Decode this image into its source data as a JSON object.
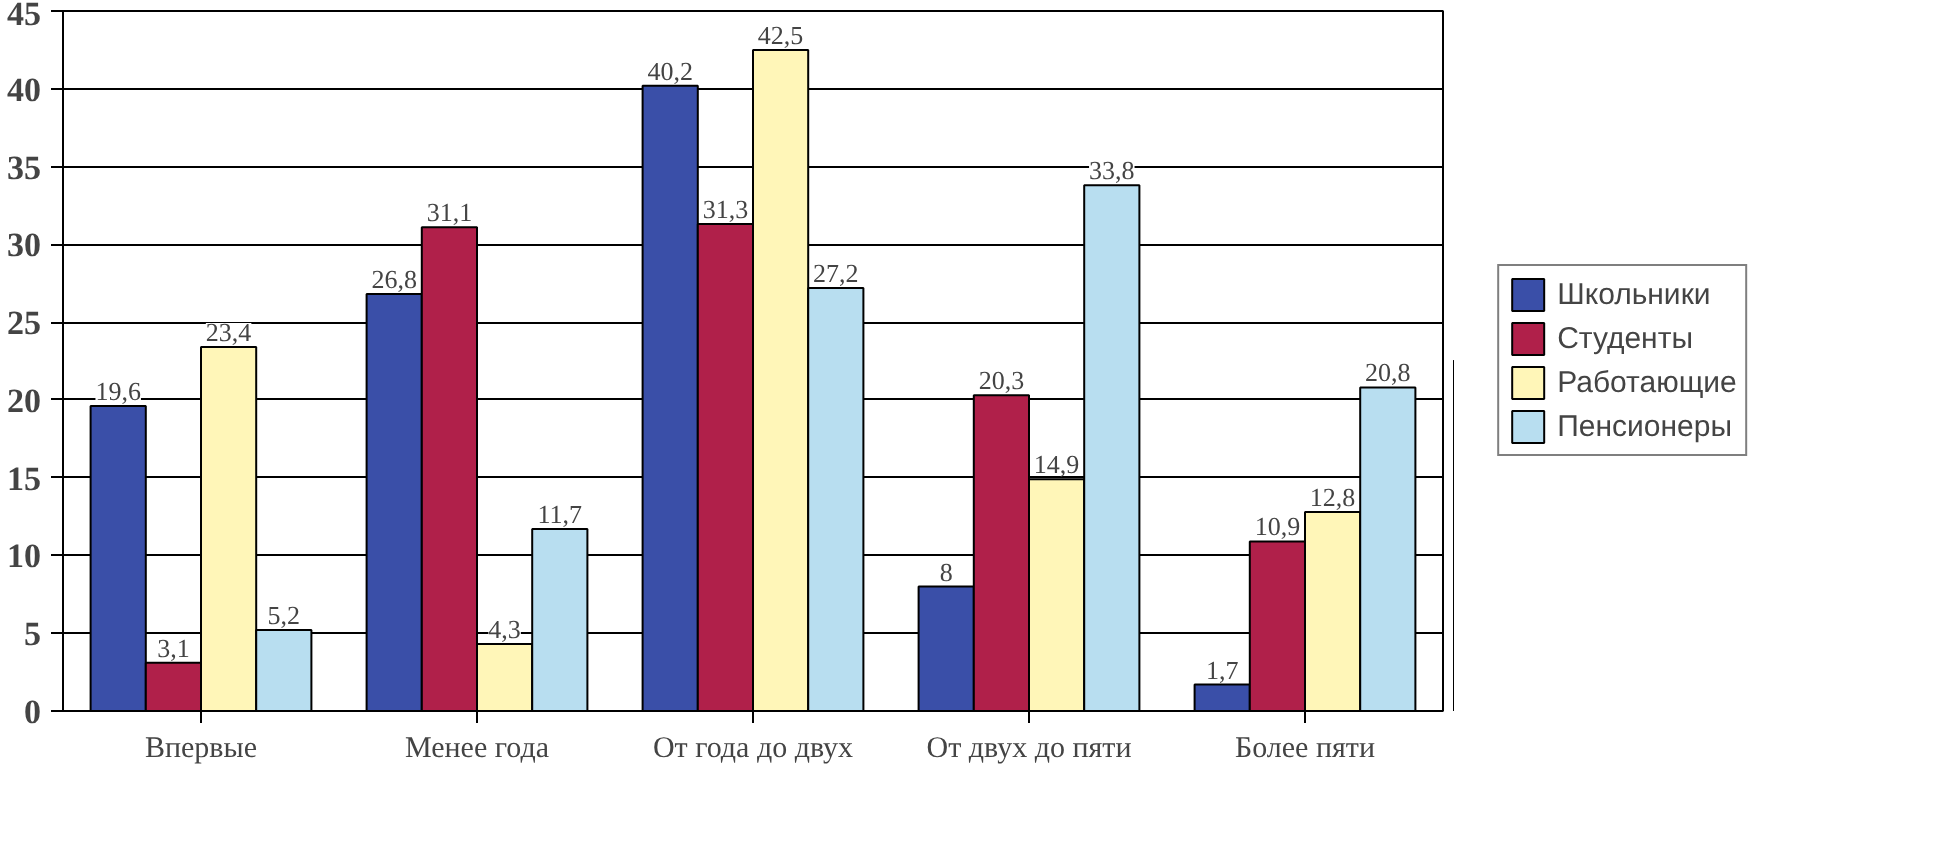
{
  "chart_data": {
    "type": "bar",
    "categories": [
      "Впервые",
      "Менее года",
      "От года до двух",
      "От двух до пяти",
      "Более пяти"
    ],
    "series": [
      {
        "name": "Школьники",
        "color": "#3a4fa8",
        "values": [
          19.6,
          26.8,
          40.2,
          8,
          1.7
        ],
        "value_labels": [
          "19,6",
          "26,8",
          "40,2",
          "8",
          "1,7"
        ]
      },
      {
        "name": "Студенты",
        "color": "#b0204a",
        "values": [
          3.1,
          31.1,
          31.3,
          20.3,
          10.9
        ],
        "value_labels": [
          "3,1",
          "31,1",
          "31,3",
          "20,3",
          "10,9"
        ]
      },
      {
        "name": "Работающие",
        "color": "#fff6b8",
        "values": [
          23.4,
          4.3,
          42.5,
          14.9,
          12.8
        ],
        "value_labels": [
          "23,4",
          "4,3",
          "42,5",
          "14,9",
          "12,8"
        ]
      },
      {
        "name": "Пенсионеры",
        "color": "#b8def0",
        "values": [
          5.2,
          11.7,
          27.2,
          33.8,
          20.8
        ],
        "value_labels": [
          "5,2",
          "11,7",
          "27,2",
          "33,8",
          "20,8"
        ]
      }
    ],
    "ylim": [
      0,
      45
    ],
    "yticks": [
      0,
      5,
      10,
      15,
      20,
      25,
      30,
      35,
      40,
      45
    ],
    "grid": "y",
    "legend": "right"
  }
}
